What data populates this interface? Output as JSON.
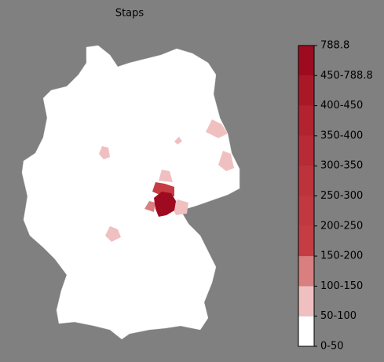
{
  "title": "Staps",
  "legend": {
    "labels": [
      "0-50",
      "50-100",
      "100-150",
      "150-200",
      "200-250",
      "250-300",
      "300-350",
      "350-400",
      "400-450",
      "450-788.8",
      "788.8"
    ],
    "colors": [
      "#ffffff",
      "#f0c0c0",
      "#d97f80",
      "#c53d42",
      "#c13840",
      "#bd323b",
      "#b82a35",
      "#b2222f",
      "#aa1828",
      "#9e0a20"
    ]
  }
}
